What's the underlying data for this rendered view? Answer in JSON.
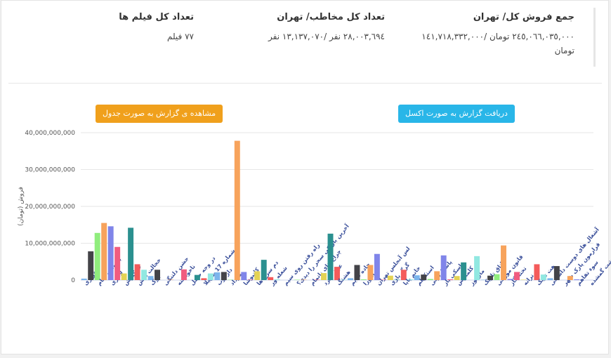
{
  "header": {
    "sales": {
      "title": "جمع فروش کل/ تهران",
      "value": "٢٤٥,٠٦٦,٠٣٥,٠٠٠ تومان /١٤١,٧١٨,٣٣٢,٠٠٠ تومان"
    },
    "audience": {
      "title": "تعداد کل مخاطب/ تهران",
      "value": "٢٨,٠٠٣,٦٩٤ نفر /١٣,١٣٧,٠٧٠ نفر"
    },
    "films": {
      "title": "تعداد کل فیلم ها",
      "value": "٧٧ فیلم"
    }
  },
  "buttons": {
    "table": "مشاهده ی گزارش به صورت جدول",
    "excel": "دریافت گزارش به صورت اکسل"
  },
  "chart_data": {
    "type": "bar",
    "ylabel": "فروش (تومان)",
    "colors": [
      "#7cb5ec",
      "#434348",
      "#90ed7d",
      "#f7a35c",
      "#8085e9",
      "#f15c80",
      "#e4d354",
      "#2b908f",
      "#f45b5b",
      "#91e8e1"
    ],
    "ylim": [
      0,
      40000000000
    ],
    "yticks": [
      0,
      {
        "value": 10000000000,
        "label": "10,000,000,000"
      },
      {
        "value": 20000000000,
        "label": "20,000,000,000"
      },
      {
        "value": 30000000000,
        "label": "30,000,000,000"
      },
      {
        "value": 40000000000,
        "label": "40,000,000,000"
      }
    ],
    "grid": true,
    "categories": [
      "فراری",
      null,
      "به وقت شام",
      null,
      "لاتاری",
      null,
      "خرگیوش",
      null,
      "خجالت نکش",
      null,
      "جوک",
      null,
      "جشن دلتنگی",
      null,
      "ناخواسته",
      null,
      "در وجه حامل",
      null,
      "شماره 17 سهیلا",
      null,
      "دارکوب",
      null,
      "مرداد",
      null,
      "کاتیوشا",
      null,
      "دم سرخ ها",
      null,
      "شعله ور",
      null,
      "راه رفتن روی سیم",
      null,
      "آخرین بار کی سحر را دیدی؟",
      null,
      "چراغ های ناتمام",
      null,
      "عرق سرد",
      null,
      "هشتگ",
      null,
      "جاده قدیم",
      null,
      "ماهورا",
      null,
      "لس آنجلس تهران",
      null,
      "گرگ بازی",
      null,
      "خانم یایا",
      null,
      "استکهلم",
      null,
      "پاستاریونی",
      null,
      "اسکی باز",
      null,
      "کلمبوس",
      null,
      "مارموز",
      null,
      "اتاق تاریک",
      null,
      "قانون مورفی",
      null,
      "تخته گاز",
      null,
      "ترانه",
      null,
      "هت تریک",
      null,
      "آشغال های دوست داشتنی",
      null,
      "قرارمون پارک شهر",
      null,
      "سوء تفاهم",
      null,
      "بهشت گمشده"
    ],
    "values": [
      400000000,
      7800000000,
      12800000000,
      15500000000,
      14600000000,
      9000000000,
      1800000000,
      14200000000,
      4300000000,
      2800000000,
      1100000000,
      2800000000,
      0,
      100000000,
      0,
      2900000000,
      0,
      1400000000,
      500000000,
      1800000000,
      2100000000,
      2200000000,
      100000000,
      37800000000,
      2200000000,
      100000000,
      2400000000,
      5500000000,
      800000000,
      200000000,
      0,
      0,
      100000000,
      100000000,
      0,
      100000000,
      1900000000,
      12600000000,
      3600000000,
      100000000,
      500000000,
      4100000000,
      200000000,
      4100000000,
      7100000000,
      100000000,
      1200000000,
      100000000,
      2800000000,
      200000000,
      1300000000,
      1500000000,
      300000000,
      2400000000,
      6700000000,
      200000000,
      1100000000,
      4800000000,
      0,
      6500000000,
      100000000,
      1200000000,
      1600000000,
      9400000000,
      300000000,
      2200000000,
      100000000,
      0,
      4300000000,
      1500000000,
      500000000,
      3800000000,
      0,
      1100000000,
      200000000,
      0,
      0
    ]
  }
}
